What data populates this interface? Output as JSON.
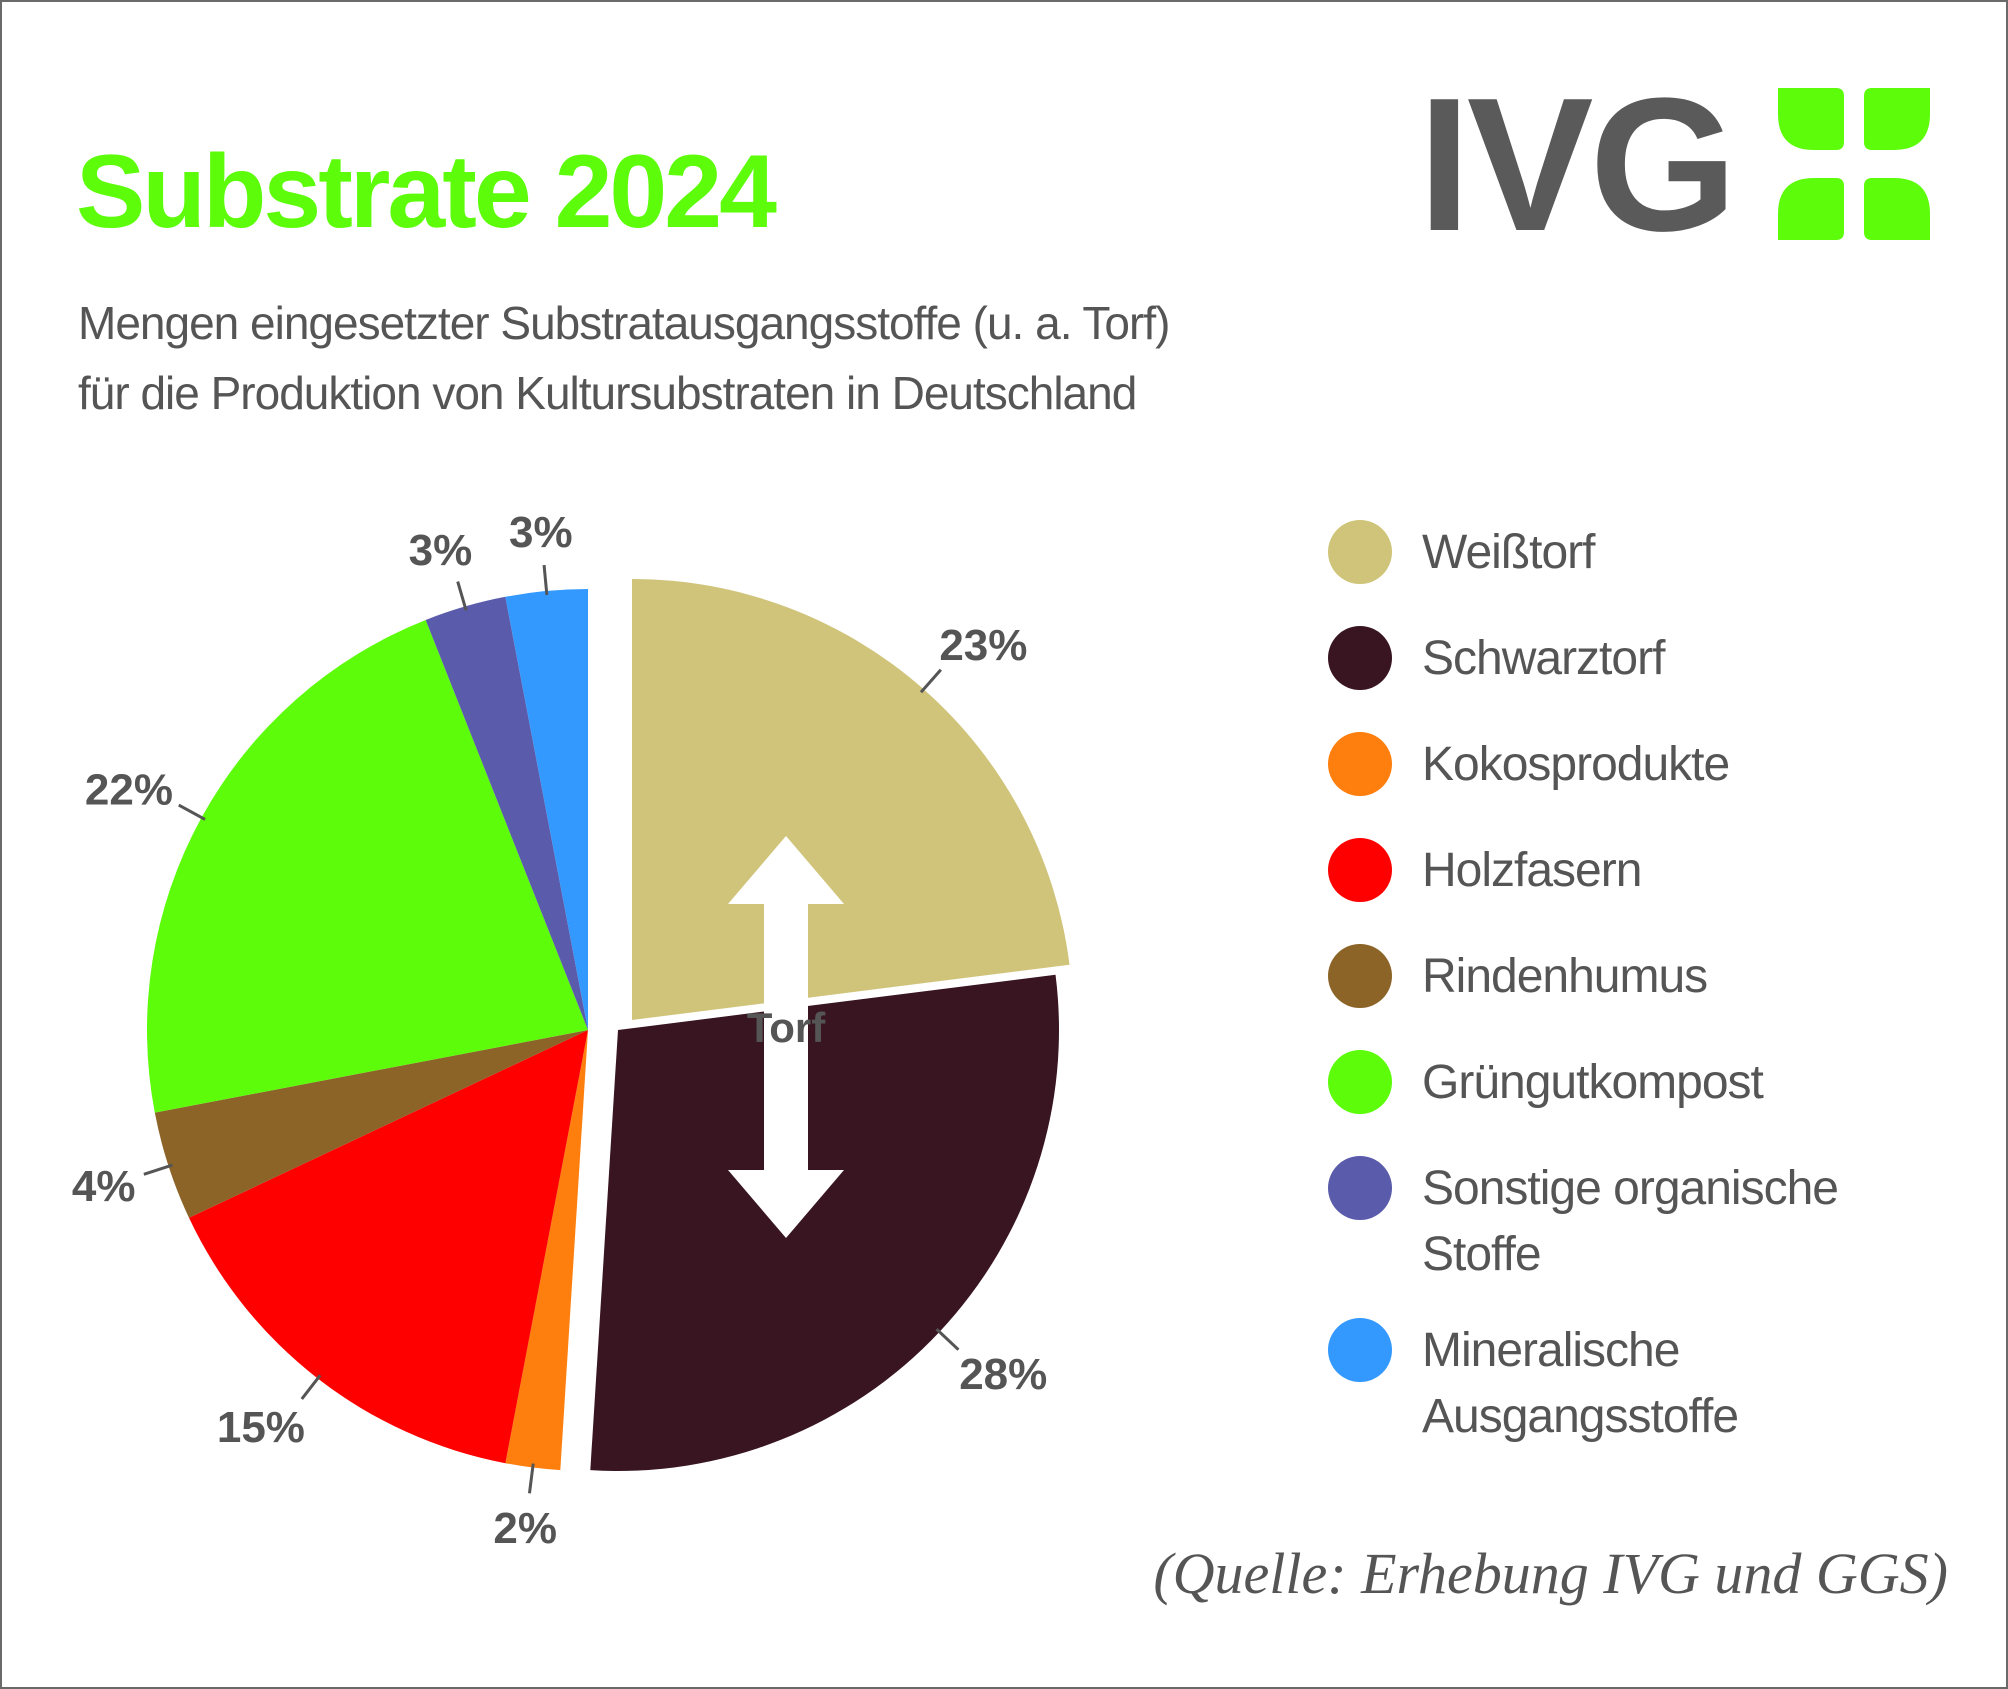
{
  "header": {
    "title": "Substrate 2024",
    "subtitle_line1": "Mengen eingesetzter Substratausgangsstoffe (u. a. Torf)",
    "subtitle_line2": "für die Produktion von Kultursubstraten in Deutschland"
  },
  "logo": {
    "text": "IVG",
    "icon": "clover-leaf-icon"
  },
  "colors": {
    "title": "#5dfc0a",
    "text": "#555555",
    "logo_green": "#5dfc0a",
    "arrow": "#ffffff"
  },
  "chart_data": {
    "type": "pie",
    "title": "Substrate 2024",
    "center_annotation": "Torf",
    "exploded_group": [
      "Weißtorf",
      "Schwarztorf"
    ],
    "series": [
      {
        "name": "Weißtorf",
        "value": 23,
        "label": "23%",
        "color": "#d0c47b"
      },
      {
        "name": "Schwarztorf",
        "value": 28,
        "label": "28%",
        "color": "#381520"
      },
      {
        "name": "Kokosprodukte",
        "value": 2,
        "label": "2%",
        "color": "#ff7f0e"
      },
      {
        "name": "Holzfasern",
        "value": 15,
        "label": "15%",
        "color": "#ff0000"
      },
      {
        "name": "Rindenhumus",
        "value": 4,
        "label": "4%",
        "color": "#8c6428"
      },
      {
        "name": "Grüngutkompost",
        "value": 22,
        "label": "22%",
        "color": "#5dfc0a"
      },
      {
        "name": "Sonstige organische Stoffe",
        "value": 3,
        "label": "3%",
        "color": "#5b5bab"
      },
      {
        "name": "Mineralische Ausgangsstoffe",
        "value": 3,
        "label": "3%",
        "color": "#3399ff"
      }
    ],
    "legend_position": "right"
  },
  "footer": {
    "source": "(Quelle: Erhebung IVG und GGS)"
  }
}
